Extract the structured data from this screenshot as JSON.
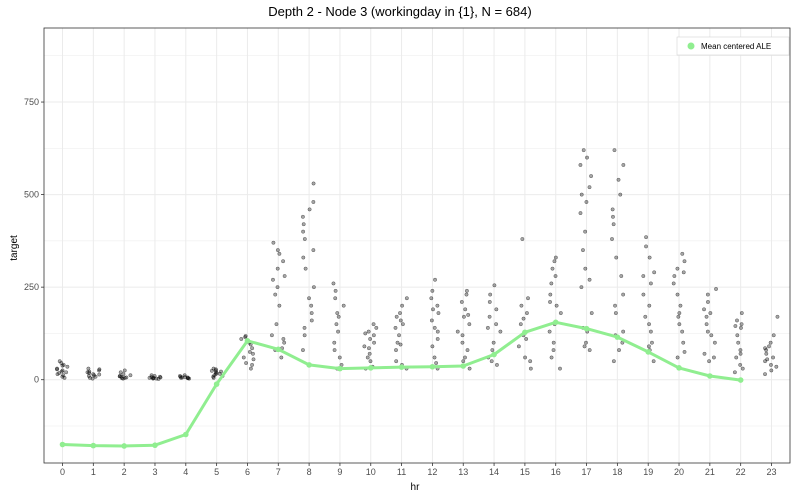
{
  "chart_data": {
    "type": "scatter",
    "title": "Depth 2 - Node 3 (workingday in {1}, N = 684)",
    "xlabel": "hr",
    "ylabel": "target",
    "xlim": [
      -0.6,
      23.6
    ],
    "ylim": [
      -225,
      950
    ],
    "x_ticks": [
      "0",
      "1",
      "2",
      "3",
      "4",
      "5",
      "6",
      "7",
      "8",
      "9",
      "10",
      "11",
      "12",
      "13",
      "14",
      "15",
      "16",
      "17",
      "18",
      "19",
      "20",
      "21",
      "22",
      "23"
    ],
    "y_ticks": [
      0,
      250,
      500,
      750
    ],
    "grid": true,
    "legend": {
      "position": "top-right",
      "entries": [
        "Mean centered ALE"
      ]
    },
    "colors": {
      "line": "#90ee90",
      "points": "#000000",
      "panel_border": "#333333",
      "grid": "#ebebeb"
    },
    "series": [
      {
        "name": "Mean centered ALE",
        "kind": "line",
        "x": [
          0,
          1,
          2,
          3,
          4,
          5,
          6,
          7,
          8,
          9,
          10,
          11,
          12,
          13,
          14,
          15,
          16,
          17,
          18,
          19,
          20,
          21,
          22
        ],
        "y": [
          -175,
          -178,
          -179,
          -177,
          -148,
          -12,
          105,
          82,
          40,
          30,
          32,
          34,
          35,
          37,
          68,
          128,
          155,
          138,
          115,
          75,
          32,
          10,
          -1
        ]
      },
      {
        "kind": "points",
        "points_by_hour": [
          [
            8,
            12,
            15,
            18,
            22,
            25,
            30,
            35,
            40,
            45,
            50,
            20,
            5,
            28,
            38
          ],
          [
            5,
            8,
            10,
            12,
            15,
            18,
            20,
            25,
            28,
            30,
            3,
            14,
            22
          ],
          [
            3,
            5,
            6,
            8,
            10,
            12,
            15,
            20,
            25,
            4,
            9
          ],
          [
            2,
            3,
            4,
            5,
            6,
            7,
            8,
            10,
            12,
            3,
            5
          ],
          [
            3,
            4,
            5,
            6,
            7,
            8,
            10,
            12,
            4,
            6
          ],
          [
            10,
            12,
            15,
            18,
            20,
            22,
            25,
            28,
            30,
            8,
            16,
            24,
            5
          ],
          [
            30,
            40,
            55,
            70,
            85,
            95,
            100,
            105,
            110,
            115,
            118,
            60,
            45,
            75
          ],
          [
            60,
            80,
            100,
            120,
            150,
            200,
            250,
            270,
            280,
            300,
            320,
            340,
            350,
            370,
            85,
            110,
            230
          ],
          [
            80,
            120,
            160,
            180,
            200,
            250,
            300,
            350,
            380,
            400,
            420,
            440,
            460,
            480,
            530,
            140,
            220,
            330
          ],
          [
            30,
            60,
            100,
            130,
            150,
            180,
            200,
            220,
            240,
            260,
            40,
            80,
            170
          ],
          [
            30,
            50,
            70,
            90,
            100,
            110,
            120,
            130,
            140,
            150,
            35,
            60,
            85,
            125
          ],
          [
            30,
            50,
            80,
            100,
            120,
            140,
            150,
            160,
            180,
            200,
            220,
            40,
            95,
            170
          ],
          [
            30,
            60,
            90,
            110,
            140,
            160,
            180,
            200,
            220,
            240,
            270,
            45,
            130,
            190
          ],
          [
            30,
            60,
            80,
            100,
            130,
            150,
            170,
            190,
            210,
            230,
            240,
            50,
            120,
            175
          ],
          [
            40,
            60,
            80,
            100,
            130,
            150,
            170,
            190,
            210,
            230,
            255,
            50,
            140
          ],
          [
            30,
            60,
            90,
            120,
            150,
            180,
            200,
            220,
            380,
            50,
            110,
            165
          ],
          [
            30,
            60,
            100,
            150,
            180,
            200,
            230,
            260,
            280,
            300,
            320,
            330,
            80,
            130,
            210
          ],
          [
            80,
            100,
            130,
            180,
            250,
            300,
            350,
            400,
            450,
            500,
            520,
            550,
            580,
            600,
            620,
            90,
            140,
            270,
            480
          ],
          [
            50,
            80,
            100,
            130,
            180,
            230,
            280,
            330,
            380,
            420,
            460,
            500,
            540,
            580,
            620,
            120,
            200,
            440
          ],
          [
            50,
            80,
            100,
            130,
            170,
            200,
            230,
            260,
            290,
            330,
            360,
            385,
            90,
            150,
            280
          ],
          [
            60,
            100,
            130,
            150,
            180,
            200,
            230,
            260,
            280,
            300,
            320,
            340,
            75,
            170,
            290
          ],
          [
            50,
            70,
            100,
            130,
            150,
            170,
            190,
            210,
            230,
            245,
            60,
            120,
            180
          ],
          [
            20,
            40,
            60,
            80,
            100,
            120,
            140,
            150,
            160,
            180,
            30,
            70,
            145
          ],
          [
            15,
            25,
            40,
            50,
            60,
            70,
            80,
            90,
            100,
            120,
            170,
            35,
            55,
            85
          ]
        ]
      }
    ]
  }
}
